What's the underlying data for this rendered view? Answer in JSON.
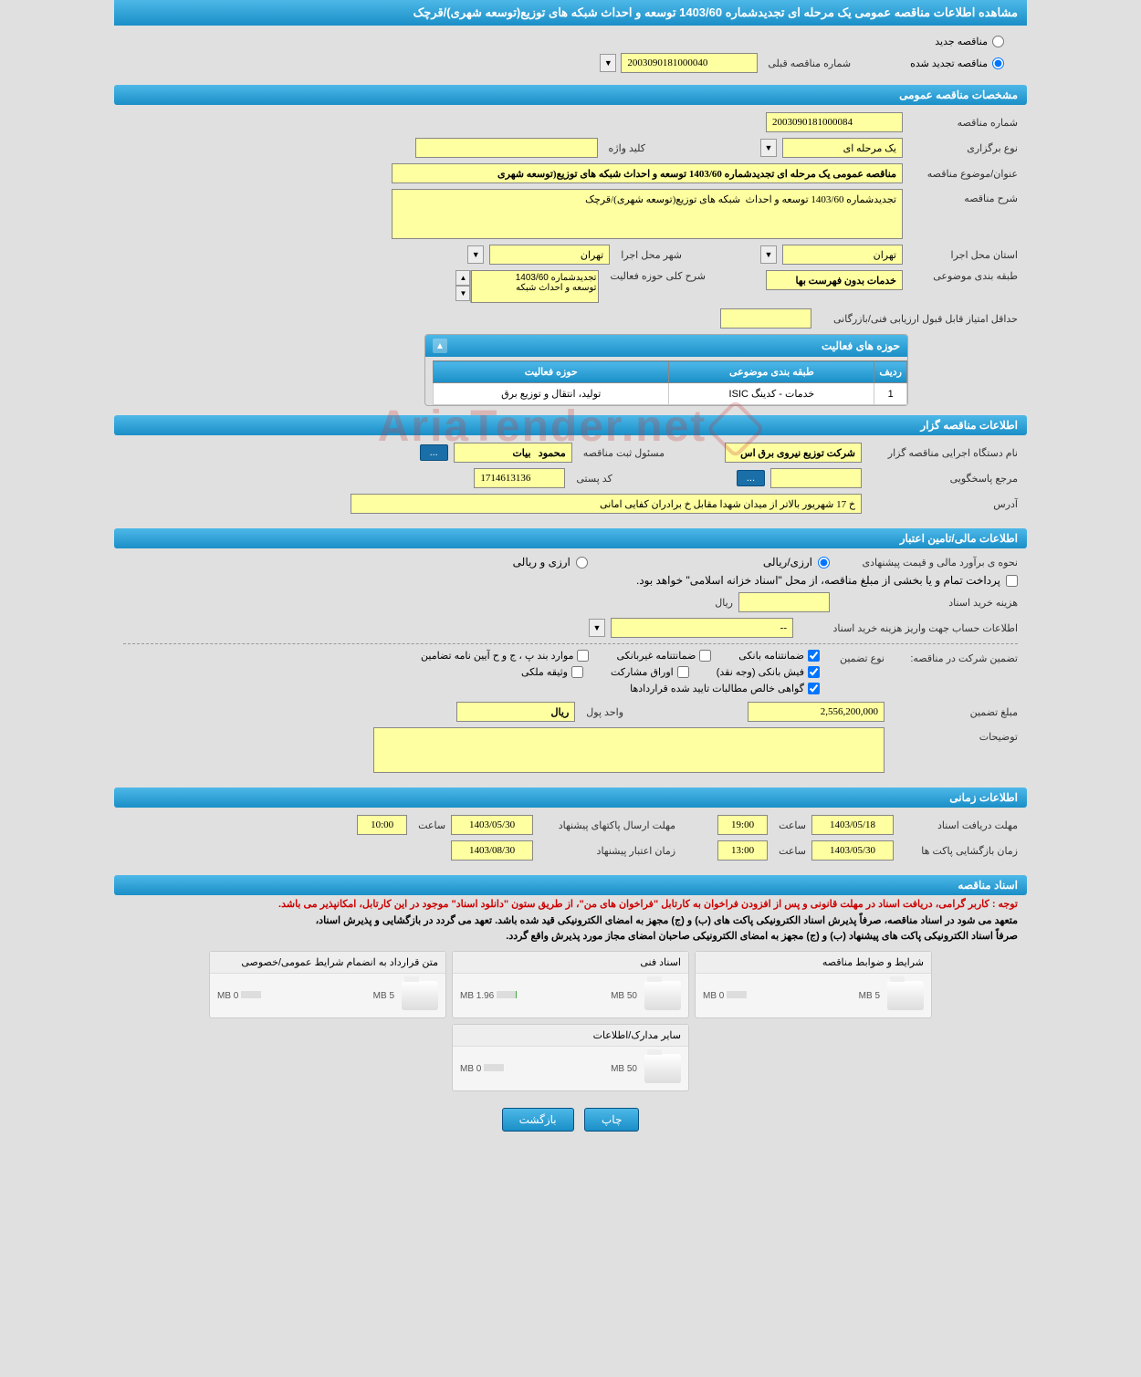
{
  "header": {
    "title": "مشاهده اطلاعات مناقصه عمومی یک مرحله ای تجدیدشماره 1403/60 توسعه و احداث شبکه های توزیع(توسعه شهری)/قرچک"
  },
  "tender_status": {
    "new_label": "مناقصه جدید",
    "renewed_label": "مناقصه تجدید شده",
    "prev_number_label": "شماره مناقصه قبلی",
    "prev_number": "2003090181000040"
  },
  "sections": {
    "general": "مشخصات مناقصه عمومی",
    "organizer": "اطلاعات مناقصه گزار",
    "financial": "اطلاعات مالی/تامین اعتبار",
    "timing": "اطلاعات زمانی",
    "documents": "اسناد مناقصه"
  },
  "general": {
    "tender_number_label": "شماره مناقصه",
    "tender_number": "2003090181000084",
    "holding_type_label": "نوع برگزاری",
    "holding_type": "یک مرحله ای",
    "keyword_label": "کلید واژه",
    "keyword": "",
    "subject_label": "عنوان/موضوع مناقصه",
    "subject": "مناقصه عمومی یک مرحله ای تجدیدشماره 1403/60 توسعه و احداث شبکه های توزیع(توسعه شهری",
    "description_label": "شرح مناقصه",
    "description": "تجدیدشماره 1403/60 توسعه و احداث  شبکه های توزیع(توسعه شهری)/قرچک",
    "province_label": "استان محل اجرا",
    "province": "تهران",
    "city_label": "شهر محل اجرا",
    "city": "تهران",
    "category_label": "طبقه بندی موضوعی",
    "category": "خدمات بدون فهرست بها",
    "activity_scope_label": "شرح کلی حوزه فعالیت",
    "activity_scope_line1": "تجدیدشماره 1403/60",
    "activity_scope_line2": "توسعه و احداث شبکه",
    "min_score_label": "حداقل امتیاز قابل قبول ارزیابی فنی/بازرگانی",
    "min_score": "",
    "activities_panel_title": "حوزه های فعالیت",
    "activities_table": {
      "col_row": "ردیف",
      "col_category": "طبقه بندی موضوعی",
      "col_scope": "حوزه فعالیت",
      "rows": [
        {
          "no": "1",
          "category": "خدمات - کدینگ ISIC",
          "scope": "تولید، انتقال و توزیع برق"
        }
      ]
    }
  },
  "organizer": {
    "executive_label": "نام دستگاه اجرایی مناقصه گزار",
    "executive": "شرکت توزیع نیروی برق اس",
    "responsible_label": "مسئول ثبت مناقصه",
    "responsible": "محمود   بیات",
    "ellipsis": "...",
    "respondent_label": "مرجع پاسخگویی",
    "respondent": "",
    "postal_label": "کد پستی",
    "postal": "1714613136",
    "address_label": "آدرس",
    "address": "خ 17 شهریور بالاتر از میدان شهدا مقابل خ برادران کفایی امانی"
  },
  "financial": {
    "estimate_label": "نحوه ی برآورد مالی و قیمت پیشنهادی",
    "option_rial": "ارزی/ریالی",
    "option_currency": "ارزی و ریالی",
    "payment_note": "پرداخت تمام و یا بخشی از مبلغ مناقصه، از محل \"اسناد خزانه اسلامی\" خواهد بود.",
    "doc_cost_label": "هزینه خرید اسناد",
    "doc_cost_unit": "ریال",
    "doc_cost": "",
    "account_info_label": "اطلاعات حساب جهت واریز هزینه خرید اسناد",
    "account_info": "--",
    "guarantee_title_label": "تضمین شرکت در مناقصه:",
    "guarantee_type_label": "نوع تضمین",
    "gt_bank": "ضمانتنامه بانکی",
    "gt_nonbank": "ضمانتنامه غیربانکی",
    "gt_cases": "موارد بند پ ، ج و ح آیین نامه تضامین",
    "gt_cash": "فیش بانکی (وجه نقد)",
    "gt_bonds": "اوراق مشارکت",
    "gt_property": "وثیقه ملکی",
    "gt_claims": "گواهی خالص مطالبات تایید شده قراردادها",
    "guarantee_amount_label": "مبلغ تضمین",
    "guarantee_amount": "2,556,200,000",
    "currency_unit_label": "واحد پول",
    "currency_unit": "ریال",
    "notes_label": "توضیحات",
    "notes": ""
  },
  "timing": {
    "doc_deadline_label": "مهلت دریافت اسناد",
    "doc_deadline_date": "1403/05/18",
    "doc_deadline_time": "19:00",
    "packet_send_label": "مهلت ارسال پاکتهای پیشنهاد",
    "packet_send_date": "1403/05/30",
    "packet_send_time": "10:00",
    "opening_label": "زمان بازگشایی پاکت ها",
    "opening_date": "1403/05/30",
    "opening_time": "13:00",
    "validity_label": "زمان اعتبار پیشنهاد",
    "validity_date": "1403/08/30",
    "time_label": "ساعت"
  },
  "docs": {
    "note_red": "توجه : کاربر گرامی، دریافت اسناد در مهلت قانونی و پس از افزودن فراخوان به کارتابل \"فراخوان های من\"، از طریق ستون \"دانلود اسناد\" موجود در این کارتابل، امکانپذیر می باشد.",
    "note1": "متعهد می شود در اسناد مناقصه، صرفاً پذیرش اسناد الکترونیکی پاکت های (ب) و (ج) مجهز به امضای الکترونیکی قید شده باشد. تعهد می گردد در بازگشایی و پذیرش اسناد،",
    "note2": "صرفاً اسناد الکترونیکی پاکت های پیشنهاد (ب) و (ج) مجهز به امضای الکترونیکی صاحبان امضای مجاز مورد پذیرش واقع گردد.",
    "boxes": [
      {
        "title": "شرایط و ضوابط مناقصه",
        "used": "0 MB",
        "total": "5 MB",
        "pct": 0
      },
      {
        "title": "اسناد فنی",
        "used": "1.96 MB",
        "total": "50 MB",
        "pct": 4
      },
      {
        "title": "متن قرارداد به انضمام شرایط عمومی/خصوصی",
        "used": "0 MB",
        "total": "5 MB",
        "pct": 0
      },
      {
        "title": "سایر مدارک/اطلاعات",
        "used": "0 MB",
        "total": "50 MB",
        "pct": 0
      }
    ]
  },
  "buttons": {
    "print": "چاپ",
    "back": "بازگشت"
  },
  "watermark": "AriaTender.net"
}
